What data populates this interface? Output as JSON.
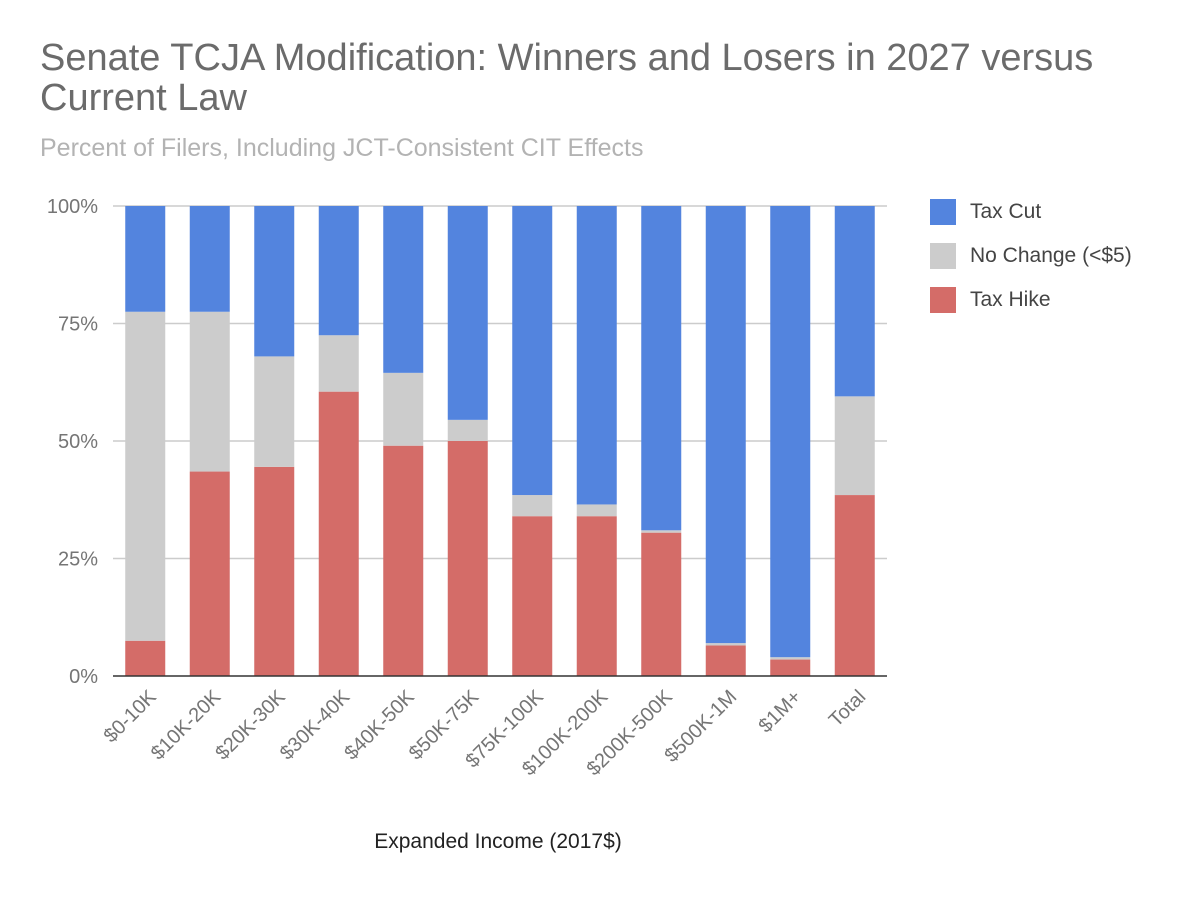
{
  "chart_data": {
    "type": "bar",
    "stacked": true,
    "title": "Senate TCJA Modification: Winners and Losers in 2027 versus Current Law",
    "subtitle": "Percent of Filers, Including JCT-Consistent CIT Effects",
    "xlabel": "Expanded Income (2017$)",
    "ylabel": "",
    "ylim": [
      0,
      100
    ],
    "yticks": [
      "0%",
      "25%",
      "50%",
      "75%",
      "100%"
    ],
    "categories": [
      "$0-10K",
      "$10K-20K",
      "$20K-30K",
      "$30K-40K",
      "$40K-50K",
      "$50K-75K",
      "$75K-100K",
      "$100K-200K",
      "$200K-500K",
      "$500K-1M",
      "$1M+",
      "Total"
    ],
    "series": [
      {
        "name": "Tax Hike",
        "color": "#d46c68",
        "values": [
          7.5,
          43.5,
          44.5,
          60.5,
          49,
          50,
          34,
          34,
          30.5,
          6.5,
          3.5,
          38.5
        ]
      },
      {
        "name": "No Change (<$5)",
        "color": "#cccccc",
        "values": [
          70,
          34,
          23.5,
          12,
          15.5,
          4.5,
          4.5,
          2.5,
          0.5,
          0.5,
          0.5,
          21
        ]
      },
      {
        "name": "Tax Cut",
        "color": "#5384de",
        "values": [
          22.5,
          22.5,
          32,
          27.5,
          35.5,
          45.5,
          61.5,
          63.5,
          69,
          93,
          96,
          40.5
        ]
      }
    ],
    "legend": {
      "position": "right",
      "items": [
        {
          "name": "Tax Cut",
          "color": "#5384de"
        },
        {
          "name": "No Change (<$5)",
          "color": "#cccccc"
        },
        {
          "name": "Tax Hike",
          "color": "#d46c68"
        }
      ]
    },
    "gridlines": true
  }
}
